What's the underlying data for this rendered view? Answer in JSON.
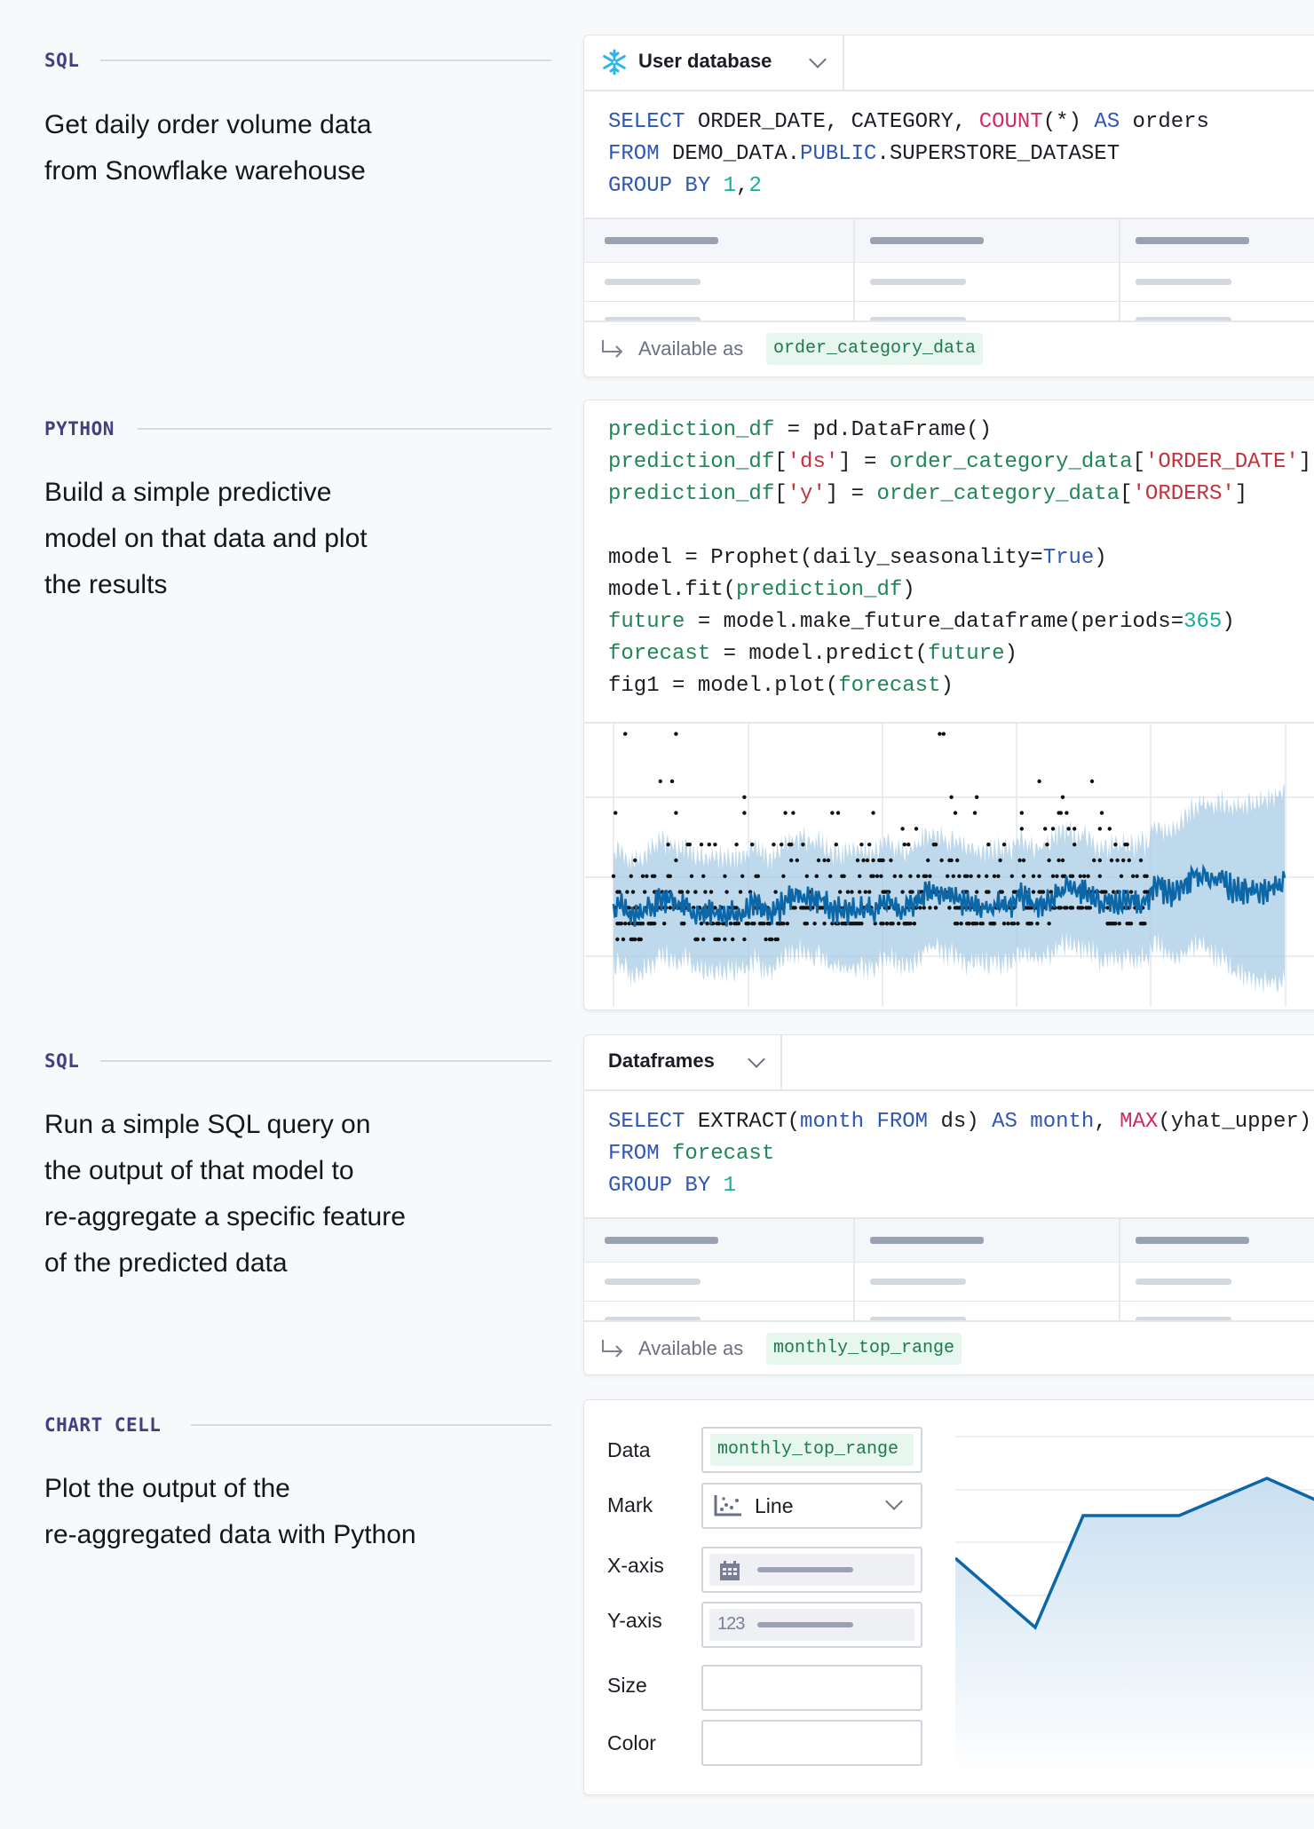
{
  "sections": [
    {
      "label": "SQL",
      "desc": [
        "Get daily order volume data",
        "from Snowflake warehouse"
      ]
    },
    {
      "label": "PYTHON",
      "desc": [
        "Build a simple predictive",
        "model on that data and plot",
        "the results"
      ]
    },
    {
      "label": "SQL",
      "desc": [
        "Run a simple SQL query on",
        "the output of that model to",
        "re-aggregate a specific feature",
        "of the predicted data"
      ]
    },
    {
      "label": "CHART CELL",
      "desc": [
        "Plot the output of the",
        "re-aggregated data with Python"
      ]
    }
  ],
  "sql_cell_1": {
    "source_label": "User database",
    "source_icon": "snowflake-icon",
    "code": [
      [
        [
          "SELECT",
          "kw"
        ],
        [
          " ORDER_DATE, CATEGORY, ",
          ""
        ],
        [
          "COUNT",
          "fn"
        ],
        [
          "(*) ",
          ""
        ],
        [
          "AS",
          "kw"
        ],
        [
          " orders",
          ""
        ]
      ],
      [
        [
          "FROM",
          "kw"
        ],
        [
          " DEMO_DATA.",
          ""
        ],
        [
          "PUBLIC",
          "kw"
        ],
        [
          ".SUPERSTORE_DATASET",
          ""
        ]
      ],
      [
        [
          "GROUP BY",
          "kw"
        ],
        [
          " ",
          ""
        ],
        [
          "1",
          "num"
        ],
        [
          ",",
          ""
        ],
        [
          "2",
          "num"
        ]
      ]
    ],
    "available_as_label": "Available as",
    "available_as_name": "order_category_data"
  },
  "python_cell": {
    "code": [
      [
        [
          "prediction_df",
          "id"
        ],
        [
          " = pd.DataFrame()",
          ""
        ]
      ],
      [
        [
          "prediction_df",
          "id"
        ],
        [
          "[",
          ""
        ],
        [
          "'ds'",
          "str"
        ],
        [
          "] = ",
          ""
        ],
        [
          "order_category_data",
          "id"
        ],
        [
          "[",
          ""
        ],
        [
          "'ORDER_DATE'",
          "str"
        ],
        [
          "]",
          ""
        ]
      ],
      [
        [
          "prediction_df",
          "id"
        ],
        [
          "[",
          ""
        ],
        [
          "'y'",
          "str"
        ],
        [
          "] = ",
          ""
        ],
        [
          "order_category_data",
          "id"
        ],
        [
          "[",
          ""
        ],
        [
          "'ORDERS'",
          "str"
        ],
        [
          "]",
          ""
        ]
      ],
      [],
      [
        [
          "model = Prophet(daily_seasonality=",
          ""
        ],
        [
          "True",
          "kw"
        ],
        [
          ")",
          ""
        ]
      ],
      [
        [
          "model.fit(",
          ""
        ],
        [
          "prediction_df",
          "id"
        ],
        [
          ")",
          ""
        ]
      ],
      [
        [
          "future",
          "id"
        ],
        [
          " = model.make_future_dataframe(periods=",
          ""
        ],
        [
          "365",
          "num"
        ],
        [
          ")",
          ""
        ]
      ],
      [
        [
          "forecast",
          "id"
        ],
        [
          " = model.predict(",
          ""
        ],
        [
          "future",
          "id"
        ],
        [
          ")",
          ""
        ]
      ],
      [
        [
          "fig1 = model.plot(",
          ""
        ],
        [
          "forecast",
          "id"
        ],
        [
          ")",
          ""
        ]
      ]
    ]
  },
  "sql_cell_2": {
    "source_label": "Dataframes",
    "code": [
      [
        [
          "SELECT",
          "kw"
        ],
        [
          " EXTRACT(",
          ""
        ],
        [
          "month FROM",
          "kw"
        ],
        [
          " ds) ",
          ""
        ],
        [
          "AS month",
          "kw"
        ],
        [
          ", ",
          ""
        ],
        [
          "MAX",
          "fn"
        ],
        [
          "(yhat_upper)",
          ""
        ]
      ],
      [
        [
          "FROM",
          "kw"
        ],
        [
          " ",
          ""
        ],
        [
          "forecast",
          "id"
        ]
      ],
      [
        [
          "GROUP BY",
          "kw"
        ],
        [
          " ",
          ""
        ],
        [
          "1",
          "num"
        ]
      ]
    ],
    "available_as_label": "Available as",
    "available_as_name": "monthly_top_range"
  },
  "chart_cell": {
    "fields": {
      "data_label": "Data",
      "data_value": "monthly_top_range",
      "mark_label": "Mark",
      "mark_value": "Line",
      "xaxis_label": "X-axis",
      "yaxis_label": "Y-axis",
      "yaxis_type_badge": "123",
      "size_label": "Size",
      "color_label": "Color"
    }
  },
  "colors": {
    "accent_line": "#0b67a8",
    "band": "#a8cbe5",
    "keyword": "#2e57b5",
    "function": "#cf2a62",
    "pill_bg": "#e7f6ee",
    "section_label": "#463d82"
  },
  "chart_data": [
    {
      "type": "scatter",
      "grid": true,
      "legend": "none",
      "overlay": "forecast line with uncertainty band",
      "axis_labels_shown": false
    },
    {
      "type": "area",
      "grid": true,
      "legend": "none",
      "axis_labels_shown": false,
      "points": [
        {
          "x": 0,
          "y": 3.7
        },
        {
          "x": 1,
          "y": 2.4
        },
        {
          "x": 1.6,
          "y": 4.5
        },
        {
          "x": 2.8,
          "y": 4.5
        },
        {
          "x": 3.9,
          "y": 5.2
        },
        {
          "x": 4.5,
          "y": 4.8
        }
      ]
    }
  ]
}
